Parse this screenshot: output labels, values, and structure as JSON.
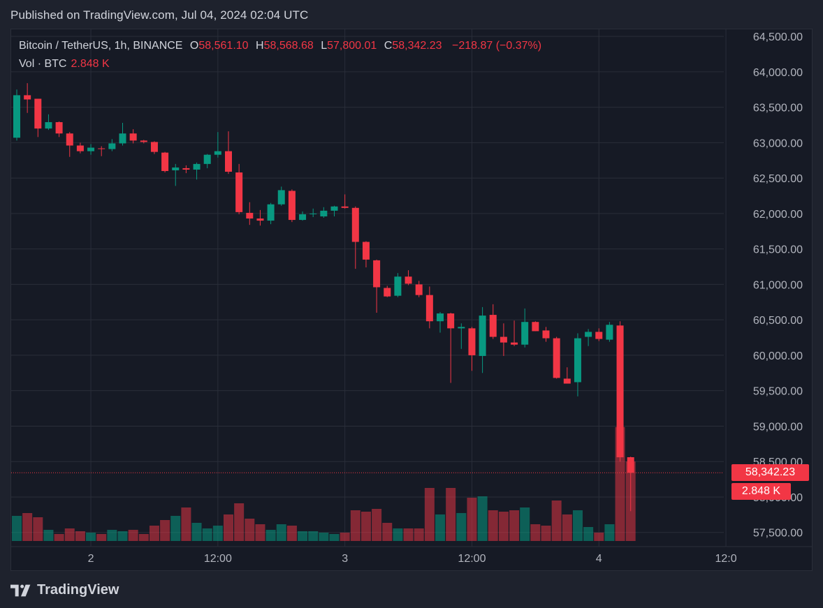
{
  "published": "Published on TradingView.com, Jul 04, 2024 02:04 UTC",
  "legend": {
    "symbol": "Bitcoin / TetherUS, 1h, BINANCE",
    "o_label": "O",
    "o_value": "58,561.10",
    "h_label": "H",
    "h_value": "58,568.68",
    "l_label": "L",
    "l_value": "57,800.01",
    "c_label": "C",
    "c_value": "58,342.23",
    "change": "−218.87 (−0.37%)",
    "vol_label": "Vol · BTC",
    "vol_value": "2.848 K"
  },
  "last_price_tag": "58,342.23",
  "last_volume_tag": "2.848 K",
  "logo_text": "TradingView",
  "colors": {
    "up": "#089981",
    "down": "#f23645",
    "background": "#161a25",
    "grid": "#2a2e39"
  },
  "chart_data": {
    "type": "candlestick",
    "symbol": "Bitcoin / TetherUS",
    "interval": "1h",
    "exchange": "BINANCE",
    "y_ticks": [
      "57,500.00",
      "58,000.00",
      "58,500.00",
      "59,000.00",
      "59,500.00",
      "60,000.00",
      "60,500.00",
      "61,000.00",
      "61,500.00",
      "62,000.00",
      "62,500.00",
      "63,000.00",
      "63,500.00",
      "64,000.00",
      "64,500.00"
    ],
    "ylim": [
      57300,
      64600
    ],
    "x_ticks": [
      {
        "label": "2",
        "index": 7
      },
      {
        "label": "12:00",
        "index": 19
      },
      {
        "label": "3",
        "index": 31
      },
      {
        "label": "12:00",
        "index": 43
      },
      {
        "label": "4",
        "index": 55
      },
      {
        "label": "12:0",
        "index": 67
      }
    ],
    "last_price": 58342.23,
    "candles": [
      {
        "o": 63070,
        "h": 63750,
        "l": 63030,
        "c": 63670,
        "v": 0.9
      },
      {
        "o": 63670,
        "h": 63840,
        "l": 63420,
        "c": 63610,
        "v": 1.0
      },
      {
        "o": 63620,
        "h": 63620,
        "l": 63080,
        "c": 63200,
        "v": 0.85
      },
      {
        "o": 63200,
        "h": 63400,
        "l": 63180,
        "c": 63290,
        "v": 0.4
      },
      {
        "o": 63290,
        "h": 63300,
        "l": 63080,
        "c": 63130,
        "v": 0.25
      },
      {
        "o": 63130,
        "h": 63150,
        "l": 62800,
        "c": 62960,
        "v": 0.45
      },
      {
        "o": 62960,
        "h": 63000,
        "l": 62850,
        "c": 62880,
        "v": 0.35
      },
      {
        "o": 62880,
        "h": 62980,
        "l": 62830,
        "c": 62930,
        "v": 0.3
      },
      {
        "o": 62920,
        "h": 62950,
        "l": 62810,
        "c": 62910,
        "v": 0.25
      },
      {
        "o": 62910,
        "h": 63050,
        "l": 62880,
        "c": 62990,
        "v": 0.4
      },
      {
        "o": 62990,
        "h": 63280,
        "l": 62960,
        "c": 63130,
        "v": 0.35
      },
      {
        "o": 63130,
        "h": 63190,
        "l": 62990,
        "c": 63030,
        "v": 0.4
      },
      {
        "o": 63030,
        "h": 63040,
        "l": 62990,
        "c": 63010,
        "v": 0.25
      },
      {
        "o": 63010,
        "h": 63020,
        "l": 62840,
        "c": 62870,
        "v": 0.55
      },
      {
        "o": 62860,
        "h": 62870,
        "l": 62580,
        "c": 62600,
        "v": 0.75
      },
      {
        "o": 62610,
        "h": 62700,
        "l": 62390,
        "c": 62650,
        "v": 0.9
      },
      {
        "o": 62640,
        "h": 62680,
        "l": 62570,
        "c": 62620,
        "v": 1.2
      },
      {
        "o": 62620,
        "h": 62720,
        "l": 62480,
        "c": 62700,
        "v": 0.65
      },
      {
        "o": 62700,
        "h": 62840,
        "l": 62640,
        "c": 62830,
        "v": 0.45
      },
      {
        "o": 62830,
        "h": 63150,
        "l": 62790,
        "c": 62880,
        "v": 0.55
      },
      {
        "o": 62880,
        "h": 63160,
        "l": 62560,
        "c": 62590,
        "v": 0.95
      },
      {
        "o": 62580,
        "h": 62700,
        "l": 61990,
        "c": 62020,
        "v": 1.35
      },
      {
        "o": 62010,
        "h": 62160,
        "l": 61840,
        "c": 61930,
        "v": 0.8
      },
      {
        "o": 61930,
        "h": 62050,
        "l": 61830,
        "c": 61900,
        "v": 0.6
      },
      {
        "o": 61900,
        "h": 62150,
        "l": 61850,
        "c": 62130,
        "v": 0.4
      },
      {
        "o": 62130,
        "h": 62380,
        "l": 62110,
        "c": 62330,
        "v": 0.6
      },
      {
        "o": 62320,
        "h": 62340,
        "l": 61880,
        "c": 61910,
        "v": 0.55
      },
      {
        "o": 61910,
        "h": 62030,
        "l": 61900,
        "c": 61990,
        "v": 0.35
      },
      {
        "o": 61990,
        "h": 62070,
        "l": 61950,
        "c": 62000,
        "v": 0.35
      },
      {
        "o": 61960,
        "h": 62090,
        "l": 61940,
        "c": 62040,
        "v": 0.3
      },
      {
        "o": 62040,
        "h": 62110,
        "l": 61960,
        "c": 62100,
        "v": 0.25
      },
      {
        "o": 62100,
        "h": 62270,
        "l": 62070,
        "c": 62080,
        "v": 0.3
      },
      {
        "o": 62080,
        "h": 62100,
        "l": 61220,
        "c": 61600,
        "v": 1.1
      },
      {
        "o": 61600,
        "h": 61610,
        "l": 61240,
        "c": 61350,
        "v": 1.05
      },
      {
        "o": 61340,
        "h": 61350,
        "l": 60600,
        "c": 60960,
        "v": 1.15
      },
      {
        "o": 60950,
        "h": 60980,
        "l": 60820,
        "c": 60830,
        "v": 0.65
      },
      {
        "o": 60840,
        "h": 61160,
        "l": 60820,
        "c": 61110,
        "v": 0.45
      },
      {
        "o": 61110,
        "h": 61200,
        "l": 60990,
        "c": 61010,
        "v": 0.45
      },
      {
        "o": 61000,
        "h": 61050,
        "l": 60820,
        "c": 60850,
        "v": 0.45
      },
      {
        "o": 60850,
        "h": 60970,
        "l": 60380,
        "c": 60480,
        "v": 1.9
      },
      {
        "o": 60480,
        "h": 60610,
        "l": 60320,
        "c": 60590,
        "v": 0.95
      },
      {
        "o": 60590,
        "h": 60600,
        "l": 59610,
        "c": 60380,
        "v": 1.9
      },
      {
        "o": 60380,
        "h": 60450,
        "l": 60090,
        "c": 60400,
        "v": 1.0
      },
      {
        "o": 60380,
        "h": 60400,
        "l": 59780,
        "c": 60000,
        "v": 1.55
      },
      {
        "o": 59990,
        "h": 60680,
        "l": 59750,
        "c": 60560,
        "v": 1.6
      },
      {
        "o": 60570,
        "h": 60720,
        "l": 60230,
        "c": 60260,
        "v": 1.1
      },
      {
        "o": 60260,
        "h": 60450,
        "l": 59990,
        "c": 60180,
        "v": 1.05
      },
      {
        "o": 60180,
        "h": 60490,
        "l": 60130,
        "c": 60150,
        "v": 1.1
      },
      {
        "o": 60150,
        "h": 60660,
        "l": 60110,
        "c": 60470,
        "v": 1.2
      },
      {
        "o": 60470,
        "h": 60480,
        "l": 60340,
        "c": 60340,
        "v": 0.6
      },
      {
        "o": 60350,
        "h": 60400,
        "l": 60190,
        "c": 60240,
        "v": 0.55
      },
      {
        "o": 60240,
        "h": 60260,
        "l": 59670,
        "c": 59680,
        "v": 1.45
      },
      {
        "o": 59670,
        "h": 59830,
        "l": 59600,
        "c": 59600,
        "v": 0.95
      },
      {
        "o": 59620,
        "h": 60310,
        "l": 59420,
        "c": 60240,
        "v": 1.1
      },
      {
        "o": 60260,
        "h": 60370,
        "l": 60130,
        "c": 60330,
        "v": 0.5
      },
      {
        "o": 60330,
        "h": 60380,
        "l": 60200,
        "c": 60230,
        "v": 0.3
      },
      {
        "o": 60220,
        "h": 60470,
        "l": 60190,
        "c": 60430,
        "v": 0.6
      },
      {
        "o": 60420,
        "h": 60480,
        "l": 58500,
        "c": 58560,
        "v": 4.08
      },
      {
        "o": 58561.1,
        "h": 58568.68,
        "l": 57800.01,
        "c": 58342.23,
        "v": 2.848
      }
    ]
  }
}
